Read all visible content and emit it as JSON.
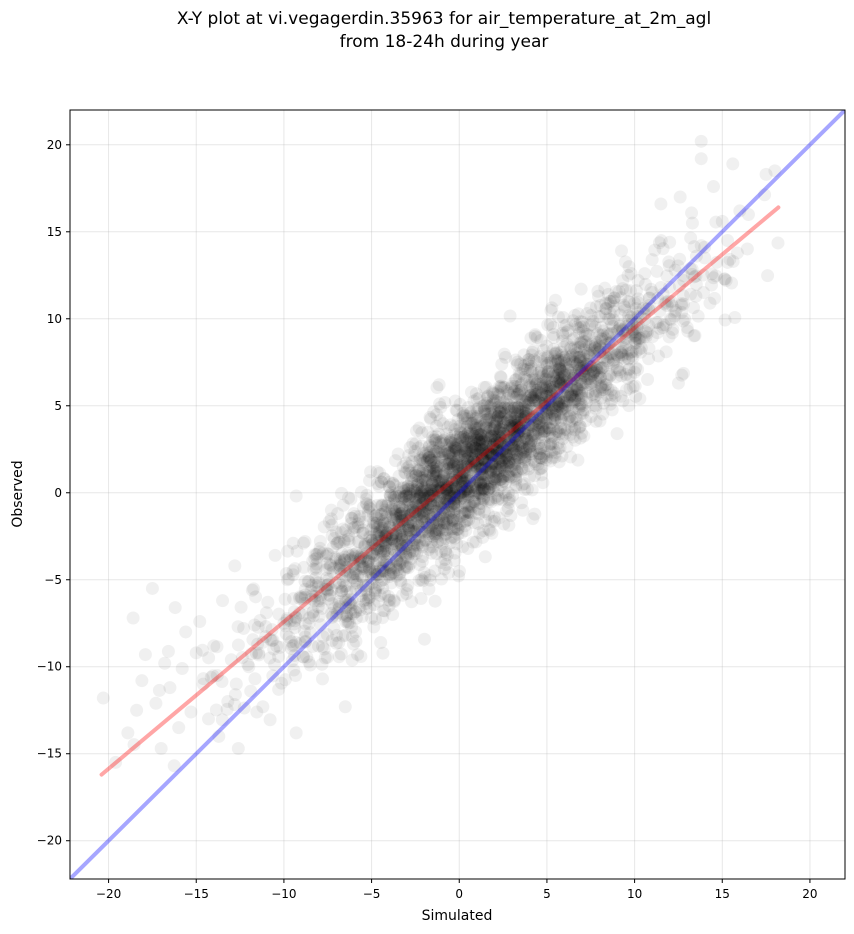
{
  "chart_data": {
    "type": "scatter",
    "title": [
      "X-Y plot at vi.vegagerdin.35963 for air_temperature_at_2m_agl",
      "from 18-24h during year"
    ],
    "xlabel": "Simulated",
    "ylabel": "Observed",
    "xlim": [
      -22.2,
      22.0
    ],
    "ylim": [
      -22.2,
      22.0
    ],
    "xticks": [
      -20,
      -15,
      -10,
      -5,
      0,
      5,
      10,
      15,
      20
    ],
    "yticks": [
      -20,
      -15,
      -10,
      -5,
      0,
      5,
      10,
      15,
      20
    ],
    "grid": true,
    "point_color": "#000000",
    "point_alpha": 0.06,
    "series": [
      {
        "kind": "points",
        "description_points_sampled": "dense scatter concentrated along the diagonal",
        "points": [
          [
            -20.3,
            -11.8
          ],
          [
            -19.6,
            -15.5
          ],
          [
            -18.9,
            -13.8
          ],
          [
            -18.6,
            -7.2
          ],
          [
            -18.4,
            -12.5
          ],
          [
            -18.1,
            -10.8
          ],
          [
            -17.9,
            -9.3
          ],
          [
            -17.5,
            -5.5
          ],
          [
            -17.3,
            -12.1
          ],
          [
            -17.0,
            -14.7
          ],
          [
            -16.8,
            -9.8
          ],
          [
            -16.5,
            -11.2
          ],
          [
            -16.2,
            -6.6
          ],
          [
            -16.0,
            -13.5
          ],
          [
            -15.8,
            -10.1
          ],
          [
            -15.6,
            -8.0
          ],
          [
            -15.3,
            -12.6
          ],
          [
            -15.0,
            -9.2
          ],
          [
            -14.8,
            -7.4
          ],
          [
            -14.6,
            -11.0
          ],
          [
            -14.3,
            -13.0
          ],
          [
            -14.0,
            -8.8
          ],
          [
            -13.8,
            -10.5
          ],
          [
            -13.5,
            -6.2
          ],
          [
            -13.2,
            -12.0
          ],
          [
            -13.0,
            -9.6
          ],
          [
            -12.8,
            -4.2
          ],
          [
            -12.6,
            -14.7
          ],
          [
            -12.3,
            -7.8
          ],
          [
            -12.0,
            -10.0
          ],
          [
            -11.8,
            -5.6
          ],
          [
            -11.5,
            -8.7
          ],
          [
            -11.2,
            -12.3
          ],
          [
            -11.0,
            -6.9
          ],
          [
            -10.8,
            -9.5
          ],
          [
            -10.5,
            -3.6
          ],
          [
            -10.3,
            -11.3
          ],
          [
            -10.0,
            -7.5
          ],
          [
            -9.8,
            -5.0
          ],
          [
            -9.5,
            -8.8
          ],
          [
            -9.3,
            -13.8
          ],
          [
            -9.0,
            -6.0
          ],
          [
            -8.8,
            -2.8
          ],
          [
            -8.5,
            -9.9
          ],
          [
            -8.3,
            -4.4
          ],
          [
            -8.0,
            -7.1
          ],
          [
            -7.8,
            -10.7
          ],
          [
            -7.5,
            -5.3
          ],
          [
            -7.3,
            -1.5
          ],
          [
            -7.0,
            -8.2
          ],
          [
            -6.8,
            -3.8
          ],
          [
            -6.5,
            -12.3
          ],
          [
            -6.3,
            -6.4
          ],
          [
            -6.0,
            -2.2
          ],
          [
            -5.8,
            -9.3
          ],
          [
            -5.5,
            -4.9
          ],
          [
            -5.3,
            -0.6
          ],
          [
            -5.0,
            -7.2
          ],
          [
            -4.8,
            -3.0
          ],
          [
            -4.5,
            -5.9
          ],
          [
            -4.3,
            0.8
          ],
          [
            -4.0,
            -2.0
          ],
          [
            -3.8,
            -7.0
          ],
          [
            -3.5,
            -4.0
          ],
          [
            -3.3,
            -1.2
          ],
          [
            -3.0,
            -5.8
          ],
          [
            -2.8,
            2.6
          ],
          [
            -2.5,
            -2.6
          ],
          [
            -2.3,
            -0.3
          ],
          [
            -2.0,
            -4.6
          ],
          [
            -1.8,
            1.2
          ],
          [
            -1.5,
            -1.8
          ],
          [
            -1.3,
            -3.5
          ],
          [
            -1.0,
            0.3
          ],
          [
            -0.8,
            -2.4
          ],
          [
            -0.5,
            3.9
          ],
          [
            -0.3,
            -0.8
          ],
          [
            0.0,
            1.1
          ],
          [
            0.2,
            -3.1
          ],
          [
            0.5,
            2.0
          ],
          [
            0.8,
            -0.5
          ],
          [
            1.0,
            4.8
          ],
          [
            1.3,
            1.5
          ],
          [
            1.5,
            -1.6
          ],
          [
            1.8,
            3.2
          ],
          [
            2.0,
            0.6
          ],
          [
            2.3,
            6.1
          ],
          [
            2.5,
            2.5
          ],
          [
            2.8,
            -0.9
          ],
          [
            3.0,
            4.0
          ],
          [
            3.3,
            1.9
          ],
          [
            3.5,
            7.4
          ],
          [
            3.8,
            3.3
          ],
          [
            4.0,
            0.9
          ],
          [
            4.3,
            5.3
          ],
          [
            4.5,
            2.8
          ],
          [
            4.8,
            8.2
          ],
          [
            5.0,
            4.6
          ],
          [
            5.3,
            2.0
          ],
          [
            5.5,
            6.4
          ],
          [
            5.8,
            3.7
          ],
          [
            6.0,
            9.6
          ],
          [
            6.3,
            5.5
          ],
          [
            6.5,
            3.2
          ],
          [
            6.8,
            7.3
          ],
          [
            7.0,
            5.0
          ],
          [
            7.3,
            10.3
          ],
          [
            7.5,
            6.3
          ],
          [
            7.8,
            4.1
          ],
          [
            8.0,
            8.4
          ],
          [
            8.3,
            5.9
          ],
          [
            8.5,
            11.4
          ],
          [
            8.8,
            7.5
          ],
          [
            9.0,
            3.4
          ],
          [
            9.3,
            9.3
          ],
          [
            9.5,
            6.8
          ],
          [
            9.8,
            12.6
          ],
          [
            10.0,
            8.6
          ],
          [
            10.3,
            5.4
          ],
          [
            10.5,
            10.6
          ],
          [
            10.8,
            7.7
          ],
          [
            11.0,
            13.4
          ],
          [
            11.3,
            9.2
          ],
          [
            11.5,
            11.8
          ],
          [
            11.8,
            8.1
          ],
          [
            12.0,
            14.4
          ],
          [
            12.3,
            10.4
          ],
          [
            12.5,
            6.3
          ],
          [
            12.8,
            12.2
          ],
          [
            13.0,
            9.5
          ],
          [
            13.3,
            15.5
          ],
          [
            13.5,
            11.3
          ],
          [
            13.8,
            20.2
          ],
          [
            13.8,
            19.2
          ],
          [
            14.0,
            13.5
          ],
          [
            14.3,
            10.9
          ],
          [
            14.5,
            17.6
          ],
          [
            15.0,
            15.6
          ],
          [
            15.3,
            14.5
          ],
          [
            15.6,
            18.9
          ],
          [
            16.0,
            16.2
          ],
          [
            17.5,
            18.3
          ],
          [
            18.0,
            18.5
          ],
          [
            11.5,
            16.6
          ],
          [
            12.6,
            17.0
          ]
        ]
      },
      {
        "kind": "line",
        "name": "",
        "color": "#ff0000",
        "alpha": 0.35,
        "x": [
          -20.4,
          18.2
        ],
        "y": [
          -16.2,
          16.4
        ]
      },
      {
        "kind": "line",
        "name": "",
        "color": "#0000ff",
        "alpha": 0.35,
        "x": [
          -22.2,
          22.0
        ],
        "y": [
          -22.2,
          22.0
        ]
      }
    ]
  }
}
